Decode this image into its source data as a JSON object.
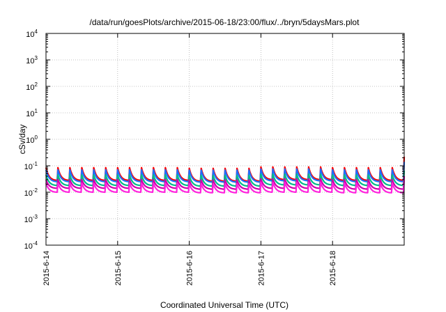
{
  "chart_data": {
    "type": "line",
    "title": "/data/run/goesPlots/archive/2015-06-18/23:00/flux/../bryn/5daysMars.plot",
    "xlabel": "Coordinated Universal Time (UTC)",
    "ylabel": "cSv/day",
    "x_tick_labels": [
      "2015-6-14",
      "2015-6-15",
      "2015-6-16",
      "2015-6-17",
      "2015-6-18"
    ],
    "xlim": [
      "2015-06-14T00:00",
      "2015-06-19T00:00"
    ],
    "yscale": "log",
    "ylim": [
      0.0001,
      10000
    ],
    "y_ticks": [
      {
        "base": "10",
        "exp": "4"
      },
      {
        "base": "10",
        "exp": "3"
      },
      {
        "base": "10",
        "exp": "2"
      },
      {
        "base": "10",
        "exp": "1"
      },
      {
        "base": "10",
        "exp": "0"
      },
      {
        "base": "10",
        "exp": "-1"
      },
      {
        "base": "10",
        "exp": "-2"
      },
      {
        "base": "10",
        "exp": "-3"
      },
      {
        "base": "10",
        "exp": "-4"
      }
    ],
    "grid": true,
    "sawtooth_period_hours": 4,
    "series": [
      {
        "color": "#ff0000",
        "day_peaks": [
          0.085,
          0.085,
          0.08,
          0.09,
          0.085,
          0.22
        ],
        "day_troughs": [
          0.028,
          0.028,
          0.026,
          0.03,
          0.028,
          0.06
        ]
      },
      {
        "color": "#1f6fff",
        "day_peaks": [
          0.07,
          0.07,
          0.068,
          0.075,
          0.07,
          0.14
        ],
        "day_troughs": [
          0.025,
          0.025,
          0.024,
          0.027,
          0.025,
          0.05
        ]
      },
      {
        "color": "#00bb88",
        "day_peaks": [
          0.045,
          0.045,
          0.043,
          0.048,
          0.045,
          0.065
        ],
        "day_troughs": [
          0.018,
          0.018,
          0.017,
          0.019,
          0.018,
          0.025
        ]
      },
      {
        "color": "#cc00aa",
        "day_peaks": [
          0.03,
          0.03,
          0.029,
          0.032,
          0.03,
          0.04
        ],
        "day_troughs": [
          0.014,
          0.014,
          0.013,
          0.014,
          0.013,
          0.017
        ]
      },
      {
        "color": "#ff22dd",
        "day_peaks": [
          0.022,
          0.022,
          0.021,
          0.024,
          0.022,
          0.028
        ],
        "day_troughs": [
          0.01,
          0.01,
          0.0095,
          0.01,
          0.0095,
          0.012
        ]
      }
    ]
  }
}
